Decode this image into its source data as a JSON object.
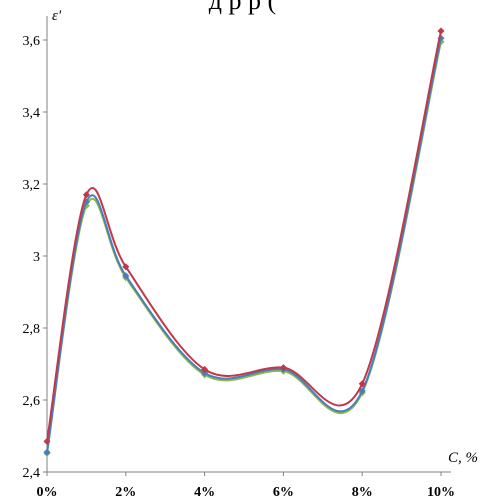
{
  "top_caption": "д р  р  (",
  "chart_data": {
    "type": "line",
    "title": "",
    "ylabel": "ε'",
    "xlabel": "C, %",
    "categories": [
      "0%",
      "2%",
      "4%",
      "6%",
      "8%",
      "10%"
    ],
    "x": [
      0,
      1,
      2,
      4,
      6,
      8,
      10
    ],
    "ylim": [
      2.4,
      3.65
    ],
    "yticks": [
      2.4,
      2.6,
      2.8,
      3.0,
      3.2,
      3.4,
      3.6
    ],
    "ytick_labels": [
      "2,4",
      "2,6",
      "2,8",
      "3",
      "3,2",
      "3,4",
      "3,6"
    ],
    "grid": false,
    "series": [
      {
        "color": "#c0394b",
        "values": [
          2.485,
          3.17,
          2.97,
          2.685,
          2.69,
          2.645,
          3.625
        ]
      },
      {
        "color": "#4a7ebb",
        "values": [
          2.455,
          3.15,
          2.945,
          2.675,
          2.685,
          2.625,
          3.605
        ]
      },
      {
        "color": "#8db94d",
        "values": [
          2.452,
          3.14,
          2.94,
          2.67,
          2.68,
          2.62,
          3.595
        ]
      }
    ]
  }
}
